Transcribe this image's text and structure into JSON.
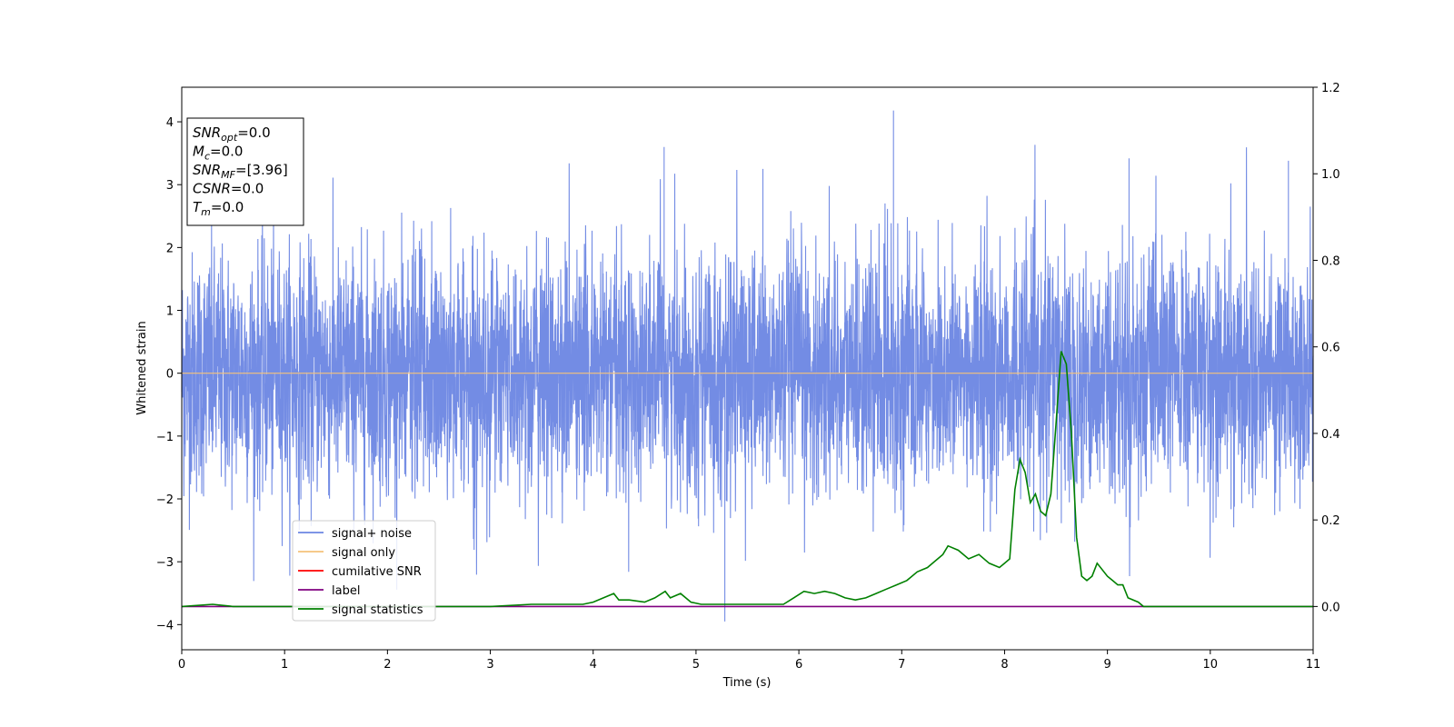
{
  "chart_data": {
    "type": "line",
    "xlabel": "Time (s)",
    "ylabel": "Whitened strain",
    "xlim": [
      0,
      11
    ],
    "ylim": [
      -4.4,
      4.55
    ],
    "ylim_right": [
      -0.1,
      1.2
    ],
    "x_ticks": [
      "0",
      "1",
      "2",
      "3",
      "4",
      "5",
      "6",
      "7",
      "8",
      "9",
      "10",
      "11"
    ],
    "y_ticks": [
      "4",
      "3",
      "2",
      "1",
      "0",
      "−1",
      "−2",
      "−3",
      "−4"
    ],
    "y_ticks_right": [
      "1.2",
      "1.0",
      "0.8",
      "0.6",
      "0.4",
      "0.2",
      "0.0"
    ],
    "grid": false,
    "legend_position": "lower-left",
    "info_box": {
      "lines": [
        {
          "base": "SNR",
          "sub": "opt",
          "value": "=0.0"
        },
        {
          "base": "M",
          "sub": "c",
          "value": "=0.0"
        },
        {
          "base": "SNR",
          "sub": "MF",
          "value": "=[3.96]"
        },
        {
          "base": "CSNR",
          "sub": "",
          "value": "=0.0"
        },
        {
          "base": "T",
          "sub": "m",
          "value": "=0.0"
        }
      ]
    },
    "series": [
      {
        "name": "signal+ noise",
        "color": "#6b86e3",
        "axis": "left",
        "kind": "noise",
        "std": 0.95,
        "min": -3.95,
        "max": 4.18
      },
      {
        "name": "signal only",
        "color": "#f5c27a",
        "axis": "left",
        "x": [
          0,
          11
        ],
        "y": [
          0,
          0
        ]
      },
      {
        "name": "cumilative SNR",
        "color": "#ff0000",
        "axis": "left",
        "x": [],
        "y": []
      },
      {
        "name": "label",
        "color": "#800080",
        "axis": "right",
        "x": [
          0,
          11
        ],
        "y": [
          0,
          0
        ]
      },
      {
        "name": "signal statistics",
        "color": "#008000",
        "axis": "right",
        "x": [
          0,
          0.3,
          0.5,
          1.0,
          2.0,
          3.0,
          3.4,
          3.6,
          3.9,
          4.0,
          4.1,
          4.2,
          4.25,
          4.35,
          4.5,
          4.6,
          4.7,
          4.75,
          4.85,
          4.95,
          5.05,
          5.2,
          5.4,
          5.6,
          5.75,
          5.85,
          5.95,
          6.05,
          6.15,
          6.25,
          6.35,
          6.45,
          6.55,
          6.65,
          6.75,
          6.85,
          6.95,
          7.05,
          7.15,
          7.25,
          7.3,
          7.4,
          7.45,
          7.55,
          7.65,
          7.75,
          7.85,
          7.95,
          8.0,
          8.05,
          8.1,
          8.15,
          8.2,
          8.25,
          8.3,
          8.35,
          8.4,
          8.45,
          8.5,
          8.55,
          8.6,
          8.65,
          8.7,
          8.75,
          8.8,
          8.85,
          8.9,
          9.0,
          9.05,
          9.1,
          9.15,
          9.2,
          9.3,
          9.35,
          9.45,
          9.55,
          9.7,
          9.9,
          10.1,
          10.5,
          11.0
        ],
        "y": [
          0.0,
          0.005,
          0.0,
          0.0,
          0.0,
          0.0,
          0.005,
          0.005,
          0.005,
          0.01,
          0.02,
          0.03,
          0.015,
          0.015,
          0.01,
          0.02,
          0.035,
          0.02,
          0.03,
          0.01,
          0.005,
          0.005,
          0.005,
          0.005,
          0.005,
          0.005,
          0.02,
          0.035,
          0.03,
          0.035,
          0.03,
          0.02,
          0.015,
          0.02,
          0.03,
          0.04,
          0.05,
          0.06,
          0.08,
          0.09,
          0.1,
          0.12,
          0.14,
          0.13,
          0.11,
          0.12,
          0.1,
          0.09,
          0.1,
          0.11,
          0.27,
          0.34,
          0.31,
          0.24,
          0.26,
          0.22,
          0.21,
          0.26,
          0.42,
          0.59,
          0.56,
          0.4,
          0.16,
          0.07,
          0.06,
          0.07,
          0.1,
          0.07,
          0.06,
          0.05,
          0.05,
          0.02,
          0.01,
          0.0,
          0.0,
          0.0,
          0.0,
          0.0,
          0.0,
          0.0,
          0.0
        ]
      }
    ]
  }
}
